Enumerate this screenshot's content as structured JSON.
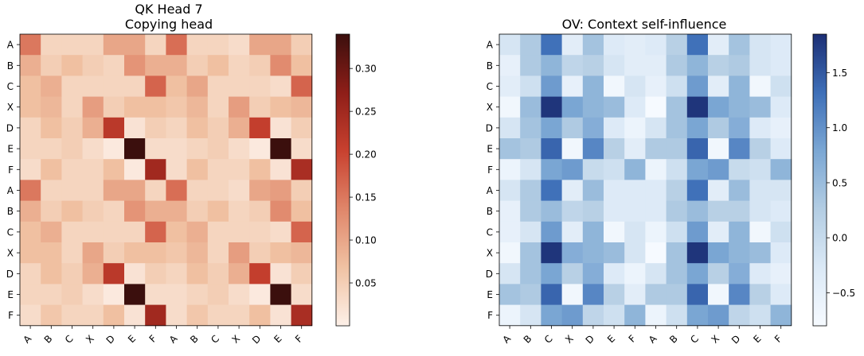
{
  "chart_data": [
    {
      "type": "heatmap",
      "title": "QK Head 7",
      "subtitle": "Copying head",
      "xlabels": [
        "A",
        "B",
        "C",
        "X",
        "D",
        "E",
        "F",
        "A",
        "B",
        "C",
        "X",
        "D",
        "E",
        "F"
      ],
      "ylabels": [
        "A",
        "B",
        "C",
        "X",
        "D",
        "E",
        "F",
        "A",
        "B",
        "C",
        "X",
        "D",
        "E",
        "F"
      ],
      "values": [
        [
          0.15,
          0.04,
          0.04,
          0.04,
          0.1,
          0.1,
          0.04,
          0.16,
          0.04,
          0.04,
          0.03,
          0.1,
          0.1,
          0.05
        ],
        [
          0.09,
          0.05,
          0.07,
          0.05,
          0.04,
          0.12,
          0.09,
          0.09,
          0.05,
          0.07,
          0.04,
          0.05,
          0.13,
          0.07
        ],
        [
          0.07,
          0.09,
          0.04,
          0.04,
          0.04,
          0.04,
          0.17,
          0.07,
          0.1,
          0.04,
          0.04,
          0.04,
          0.03,
          0.17
        ],
        [
          0.07,
          0.08,
          0.04,
          0.11,
          0.05,
          0.07,
          0.07,
          0.06,
          0.08,
          0.04,
          0.11,
          0.05,
          0.07,
          0.08
        ],
        [
          0.04,
          0.07,
          0.05,
          0.09,
          0.22,
          0.02,
          0.05,
          0.04,
          0.07,
          0.05,
          0.09,
          0.21,
          0.02,
          0.05
        ],
        [
          0.04,
          0.04,
          0.05,
          0.03,
          0.01,
          0.34,
          0.03,
          0.03,
          0.04,
          0.05,
          0.03,
          0.01,
          0.34,
          0.03
        ],
        [
          0.03,
          0.07,
          0.04,
          0.04,
          0.07,
          0.01,
          0.25,
          0.03,
          0.07,
          0.04,
          0.04,
          0.07,
          0.02,
          0.24
        ],
        [
          0.15,
          0.04,
          0.04,
          0.04,
          0.1,
          0.1,
          0.04,
          0.16,
          0.04,
          0.04,
          0.03,
          0.1,
          0.11,
          0.05
        ],
        [
          0.09,
          0.05,
          0.07,
          0.05,
          0.04,
          0.12,
          0.09,
          0.09,
          0.05,
          0.07,
          0.04,
          0.05,
          0.13,
          0.07
        ],
        [
          0.07,
          0.09,
          0.04,
          0.04,
          0.04,
          0.04,
          0.17,
          0.07,
          0.09,
          0.04,
          0.04,
          0.04,
          0.03,
          0.17
        ],
        [
          0.07,
          0.07,
          0.04,
          0.1,
          0.05,
          0.07,
          0.07,
          0.06,
          0.08,
          0.04,
          0.11,
          0.05,
          0.07,
          0.08
        ],
        [
          0.04,
          0.07,
          0.05,
          0.09,
          0.22,
          0.02,
          0.05,
          0.04,
          0.07,
          0.05,
          0.09,
          0.21,
          0.02,
          0.05
        ],
        [
          0.04,
          0.04,
          0.05,
          0.03,
          0.01,
          0.34,
          0.03,
          0.03,
          0.04,
          0.05,
          0.03,
          0.01,
          0.34,
          0.03
        ],
        [
          0.03,
          0.06,
          0.04,
          0.04,
          0.07,
          0.02,
          0.25,
          0.03,
          0.06,
          0.04,
          0.04,
          0.07,
          0.02,
          0.24
        ]
      ],
      "colormap": [
        "#fdf0e8",
        "#f0c2a3",
        "#e0866a",
        "#c8412f",
        "#8e1e18",
        "#3b0f0d"
      ],
      "vmin": 0.0,
      "vmax": 0.34,
      "colorbar_ticks": [
        "0.05",
        "0.10",
        "0.15",
        "0.20",
        "0.25",
        "0.30"
      ],
      "colorbar_tick_values": [
        0.05,
        0.1,
        0.15,
        0.2,
        0.25,
        0.3
      ]
    },
    {
      "type": "heatmap",
      "title": "OV: Context self-influence",
      "xlabels": [
        "A",
        "B",
        "C",
        "X",
        "D",
        "E",
        "F",
        "A",
        "B",
        "C",
        "X",
        "D",
        "E",
        "F"
      ],
      "ylabels": [
        "A",
        "B",
        "C",
        "X",
        "D",
        "E",
        "F",
        "A",
        "B",
        "C",
        "X",
        "D",
        "E",
        "F"
      ],
      "values": [
        [
          -0.2,
          0.3,
          1.3,
          -0.4,
          0.4,
          -0.3,
          -0.4,
          -0.3,
          0.2,
          1.3,
          -0.4,
          0.4,
          -0.2,
          -0.3
        ],
        [
          -0.5,
          0.3,
          0.6,
          0.1,
          0.2,
          -0.2,
          -0.4,
          -0.4,
          0.3,
          0.6,
          0.2,
          0.3,
          -0.2,
          -0.3
        ],
        [
          -0.4,
          -0.1,
          0.9,
          -0.5,
          0.6,
          -0.7,
          -0.2,
          -0.5,
          -0.1,
          0.9,
          -0.4,
          0.6,
          -0.7,
          -0.1
        ],
        [
          -0.7,
          0.5,
          1.8,
          0.8,
          0.6,
          0.5,
          -0.3,
          -0.8,
          0.4,
          1.8,
          0.8,
          0.6,
          0.5,
          -0.3
        ],
        [
          -0.2,
          0.4,
          0.8,
          0.3,
          0.7,
          -0.3,
          -0.6,
          -0.2,
          0.4,
          0.8,
          0.3,
          0.7,
          -0.3,
          -0.5
        ],
        [
          0.4,
          0.3,
          1.4,
          -0.7,
          1.1,
          0.2,
          -0.4,
          0.3,
          0.3,
          1.4,
          -0.7,
          1.1,
          0.2,
          -0.3
        ],
        [
          -0.6,
          -0.2,
          0.8,
          0.9,
          0.0,
          -0.1,
          0.6,
          -0.6,
          -0.1,
          0.8,
          0.9,
          0.0,
          -0.1,
          0.6
        ],
        [
          -0.2,
          0.3,
          1.3,
          -0.4,
          0.5,
          -0.3,
          -0.3,
          -0.3,
          0.2,
          1.3,
          -0.4,
          0.5,
          -0.2,
          -0.2
        ],
        [
          -0.5,
          0.3,
          0.5,
          0.1,
          0.2,
          -0.3,
          -0.3,
          -0.3,
          0.3,
          0.5,
          0.2,
          0.2,
          -0.2,
          -0.3
        ],
        [
          -0.5,
          -0.2,
          0.9,
          -0.4,
          0.6,
          -0.7,
          -0.2,
          -0.6,
          -0.1,
          0.9,
          -0.4,
          0.6,
          -0.7,
          -0.1
        ],
        [
          -0.7,
          0.4,
          1.8,
          0.7,
          0.6,
          0.5,
          -0.2,
          -0.8,
          0.4,
          1.8,
          0.8,
          0.6,
          0.5,
          -0.3
        ],
        [
          -0.2,
          0.4,
          0.8,
          0.2,
          0.7,
          -0.3,
          -0.6,
          -0.2,
          0.4,
          0.8,
          0.2,
          0.7,
          -0.3,
          -0.5
        ],
        [
          0.4,
          0.3,
          1.4,
          -0.7,
          1.1,
          0.2,
          -0.4,
          0.3,
          0.3,
          1.4,
          -0.7,
          1.1,
          0.2,
          -0.3
        ],
        [
          -0.6,
          -0.2,
          0.8,
          0.9,
          0.1,
          -0.1,
          0.6,
          -0.6,
          -0.1,
          0.8,
          0.9,
          0.1,
          -0.1,
          0.6
        ]
      ],
      "colormap": [
        "#f6faff",
        "#dbe9f6",
        "#b3cde3",
        "#7ba7d4",
        "#3e6fb8",
        "#1c2f75"
      ],
      "vmin": -0.8,
      "vmax": 1.85,
      "colorbar_ticks": [
        "−0.5",
        "0.0",
        "0.5",
        "1.0",
        "1.5"
      ],
      "colorbar_tick_values": [
        -0.5,
        0.0,
        0.5,
        1.0,
        1.5
      ]
    }
  ]
}
